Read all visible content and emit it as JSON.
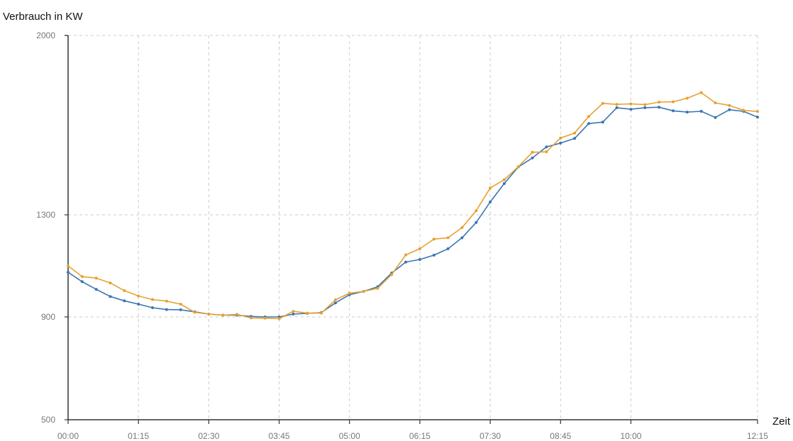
{
  "chart_data": {
    "type": "line",
    "ylabel": "Verbrauch in KW",
    "xlabel": "Zeit",
    "ylim": [
      500,
      2000
    ],
    "y_ticks": [
      500,
      900,
      1300,
      2000
    ],
    "x_domain_minutes": [
      0,
      735
    ],
    "x_tick_labels": [
      "00:00",
      "01:15",
      "02:30",
      "03:45",
      "05:00",
      "06:15",
      "07:30",
      "08:45",
      "10:00",
      "12:15"
    ],
    "x_tick_minutes": [
      0,
      75,
      150,
      225,
      300,
      375,
      450,
      525,
      600,
      735
    ],
    "grid": true,
    "series": [
      {
        "color": "#3a75b5",
        "x_minutes": [
          0,
          15,
          30,
          45,
          60,
          75,
          90,
          105,
          120,
          135,
          150,
          165,
          180,
          195,
          210,
          225,
          240,
          255,
          270,
          285,
          300,
          315,
          330,
          345,
          360,
          375,
          390,
          405,
          420,
          435,
          450,
          465,
          480,
          495,
          510,
          525,
          540,
          555,
          570,
          585,
          600,
          615,
          630,
          645,
          660,
          675,
          690,
          705,
          720,
          735
        ],
        "values": [
          1075,
          1038,
          1008,
          980,
          963,
          950,
          936,
          929,
          928,
          920,
          911,
          907,
          907,
          902,
          900,
          900,
          911,
          914,
          917,
          955,
          987,
          1000,
          1018,
          1072,
          1115,
          1125,
          1142,
          1167,
          1210,
          1270,
          1350,
          1422,
          1487,
          1522,
          1565,
          1580,
          1598,
          1656,
          1662,
          1718,
          1712,
          1718,
          1720,
          1706,
          1701,
          1704,
          1680,
          1710,
          1704,
          1681
        ]
      },
      {
        "color": "#e6a130",
        "x_minutes": [
          0,
          15,
          30,
          45,
          60,
          75,
          90,
          105,
          120,
          135,
          150,
          165,
          180,
          195,
          210,
          225,
          240,
          255,
          270,
          285,
          300,
          315,
          330,
          345,
          360,
          375,
          390,
          405,
          420,
          435,
          450,
          465,
          480,
          495,
          510,
          525,
          540,
          555,
          570,
          585,
          600,
          615,
          630,
          645,
          660,
          675,
          690,
          705,
          720,
          735
        ],
        "values": [
          1100,
          1058,
          1052,
          1033,
          1003,
          982,
          968,
          962,
          950,
          918,
          911,
          907,
          910,
          896,
          895,
          893,
          922,
          915,
          915,
          967,
          993,
          1000,
          1012,
          1066,
          1143,
          1167,
          1205,
          1210,
          1250,
          1316,
          1405,
          1437,
          1488,
          1544,
          1546,
          1600,
          1619,
          1684,
          1735,
          1731,
          1733,
          1730,
          1740,
          1741,
          1755,
          1777,
          1737,
          1727,
          1708,
          1703
        ]
      }
    ]
  }
}
